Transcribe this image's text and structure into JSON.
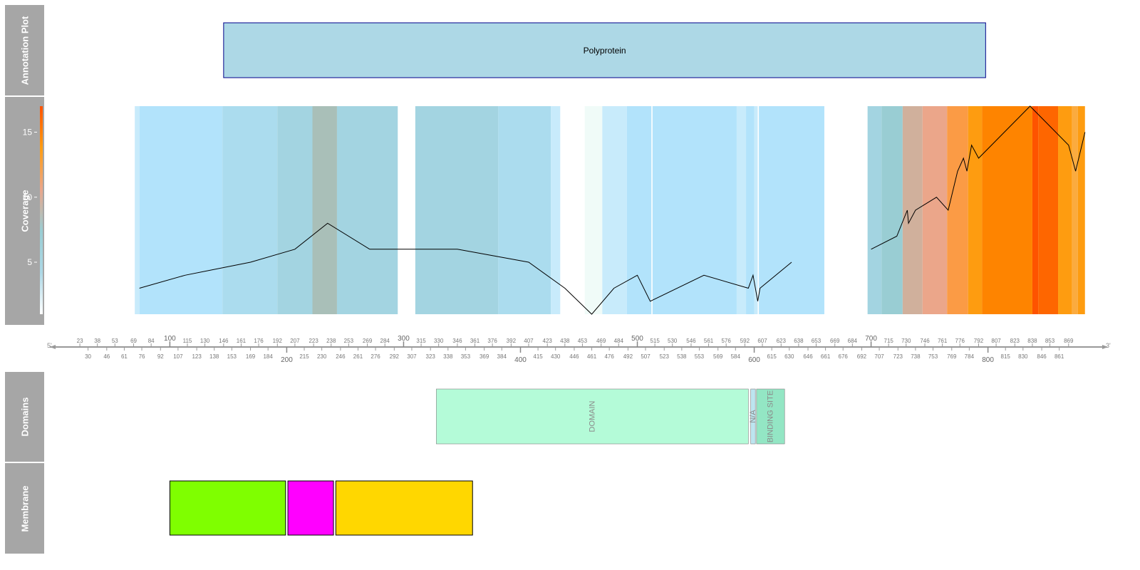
{
  "tracks": {
    "annotation": "Annotation Plot",
    "coverage": "Coverage",
    "domains": "Domains",
    "membrane": "Membrane"
  },
  "annotation": {
    "label": "Polyprotein",
    "start": 146,
    "end": 798,
    "fill": "#add8e6",
    "stroke": "#00008b"
  },
  "chart_data": {
    "type": "line",
    "ylabel": "Coverage",
    "xlim": [
      1,
      899
    ],
    "ylim": [
      0,
      17
    ],
    "y_ticks": [
      5,
      10,
      15
    ],
    "segments": [
      {
        "points": [
          [
            74,
            3
          ],
          [
            113,
            4
          ],
          [
            169,
            5
          ],
          [
            207,
            6
          ],
          [
            235,
            8
          ],
          [
            271,
            6
          ]
        ]
      },
      {
        "points": [
          [
            271,
            6
          ],
          [
            346,
            6
          ],
          [
            407,
            5
          ],
          [
            438,
            3
          ],
          [
            461,
            1
          ],
          [
            480,
            3
          ],
          [
            500,
            4
          ],
          [
            511,
            2
          ],
          [
            557,
            4
          ],
          [
            595,
            3
          ],
          [
            599,
            4
          ],
          [
            603,
            2
          ],
          [
            605,
            3
          ],
          [
            632,
            5
          ]
        ]
      },
      {
        "points": [
          [
            700,
            6
          ],
          [
            722,
            7
          ],
          [
            731,
            9
          ],
          [
            732,
            8
          ],
          [
            738,
            9
          ],
          [
            756,
            10
          ],
          [
            766,
            9
          ],
          [
            774,
            12
          ],
          [
            779,
            13
          ],
          [
            782,
            12
          ],
          [
            786,
            14
          ],
          [
            792,
            13
          ],
          [
            836,
            17
          ],
          [
            869,
            14
          ],
          [
            875,
            12
          ],
          [
            883,
            15
          ]
        ]
      }
    ],
    "heatmap_bands": [
      {
        "start": 70,
        "end": 74,
        "color": "#c8ebfb"
      },
      {
        "start": 74,
        "end": 145,
        "color": "#b2e3fb"
      },
      {
        "start": 145,
        "end": 192,
        "color": "#abdcee"
      },
      {
        "start": 192,
        "end": 222,
        "color": "#a3d4e1"
      },
      {
        "start": 222,
        "end": 243,
        "color": "#a9bfb8"
      },
      {
        "start": 243,
        "end": 295,
        "color": "#a3d4e1"
      },
      {
        "start": 310,
        "end": 381,
        "color": "#a3d4e1"
      },
      {
        "start": 381,
        "end": 426,
        "color": "#abdcee"
      },
      {
        "start": 426,
        "end": 434,
        "color": "#c8ebfb"
      },
      {
        "start": 455,
        "end": 470,
        "color": "#f0fbf8"
      },
      {
        "start": 470,
        "end": 491,
        "color": "#c8ebfb"
      },
      {
        "start": 491,
        "end": 512,
        "color": "#b2e3fb"
      },
      {
        "start": 513,
        "end": 585,
        "color": "#b2e3fb"
      },
      {
        "start": 585,
        "end": 593,
        "color": "#c8ebfb"
      },
      {
        "start": 593,
        "end": 600,
        "color": "#b2e3fb"
      },
      {
        "start": 600,
        "end": 603,
        "color": "#c8ebfb"
      },
      {
        "start": 604,
        "end": 660,
        "color": "#b2e3fb"
      },
      {
        "start": 697,
        "end": 709,
        "color": "#a3d4e1"
      },
      {
        "start": 709,
        "end": 727,
        "color": "#99cdd3"
      },
      {
        "start": 727,
        "end": 744,
        "color": "#d0b09c"
      },
      {
        "start": 744,
        "end": 765,
        "color": "#eba68a"
      },
      {
        "start": 765,
        "end": 783,
        "color": "#fb9b45"
      },
      {
        "start": 783,
        "end": 795,
        "color": "#fe9c10"
      },
      {
        "start": 795,
        "end": 838,
        "color": "#fe8400"
      },
      {
        "start": 838,
        "end": 843,
        "color": "#fe5300"
      },
      {
        "start": 843,
        "end": 860,
        "color": "#fe6600"
      },
      {
        "start": 860,
        "end": 872,
        "color": "#fe9c10"
      },
      {
        "start": 872,
        "end": 877,
        "color": "#fbab3f"
      },
      {
        "start": 877,
        "end": 883,
        "color": "#fe9c10"
      }
    ],
    "colorbar": [
      "#ffffff",
      "#add8e6",
      "#99cdd3",
      "#eba68a",
      "#fe9c10",
      "#fe5300"
    ]
  },
  "axis": {
    "five_prime": "5'",
    "three_prime": "3'",
    "major_ticks": [
      100,
      200,
      300,
      400,
      500,
      600,
      700,
      800
    ],
    "top_ticks": [
      23,
      38,
      53,
      69,
      84,
      115,
      130,
      146,
      161,
      176,
      192,
      207,
      223,
      238,
      253,
      269,
      284,
      315,
      330,
      346,
      361,
      376,
      392,
      407,
      423,
      438,
      453,
      469,
      484,
      515,
      530,
      546,
      561,
      576,
      592,
      607,
      623,
      638,
      653,
      669,
      684,
      715,
      730,
      746,
      761,
      776,
      792,
      807,
      823,
      838,
      853,
      869
    ],
    "bottom_ticks": [
      30,
      46,
      61,
      76,
      92,
      107,
      123,
      138,
      153,
      169,
      184,
      215,
      230,
      246,
      261,
      276,
      292,
      307,
      323,
      338,
      353,
      369,
      384,
      415,
      430,
      446,
      461,
      476,
      492,
      507,
      523,
      538,
      553,
      569,
      584,
      615,
      630,
      646,
      661,
      676,
      692,
      707,
      723,
      738,
      753,
      769,
      784,
      815,
      830,
      846,
      861
    ]
  },
  "domains": [
    {
      "label": "DOMAIN",
      "start": 328,
      "end": 595,
      "fill": "#b4fbd8"
    },
    {
      "label": "N/A",
      "start": 597,
      "end": 601,
      "fill": "#bde5f0"
    },
    {
      "label": "BINDING SITE",
      "start": 602,
      "end": 626,
      "fill": "#93e6c4"
    }
  ],
  "membrane": [
    {
      "start": 100,
      "end": 199,
      "fill": "#7fff00"
    },
    {
      "start": 201,
      "end": 240,
      "fill": "#ff00ff"
    },
    {
      "start": 242,
      "end": 359,
      "fill": "#ffd700"
    }
  ]
}
